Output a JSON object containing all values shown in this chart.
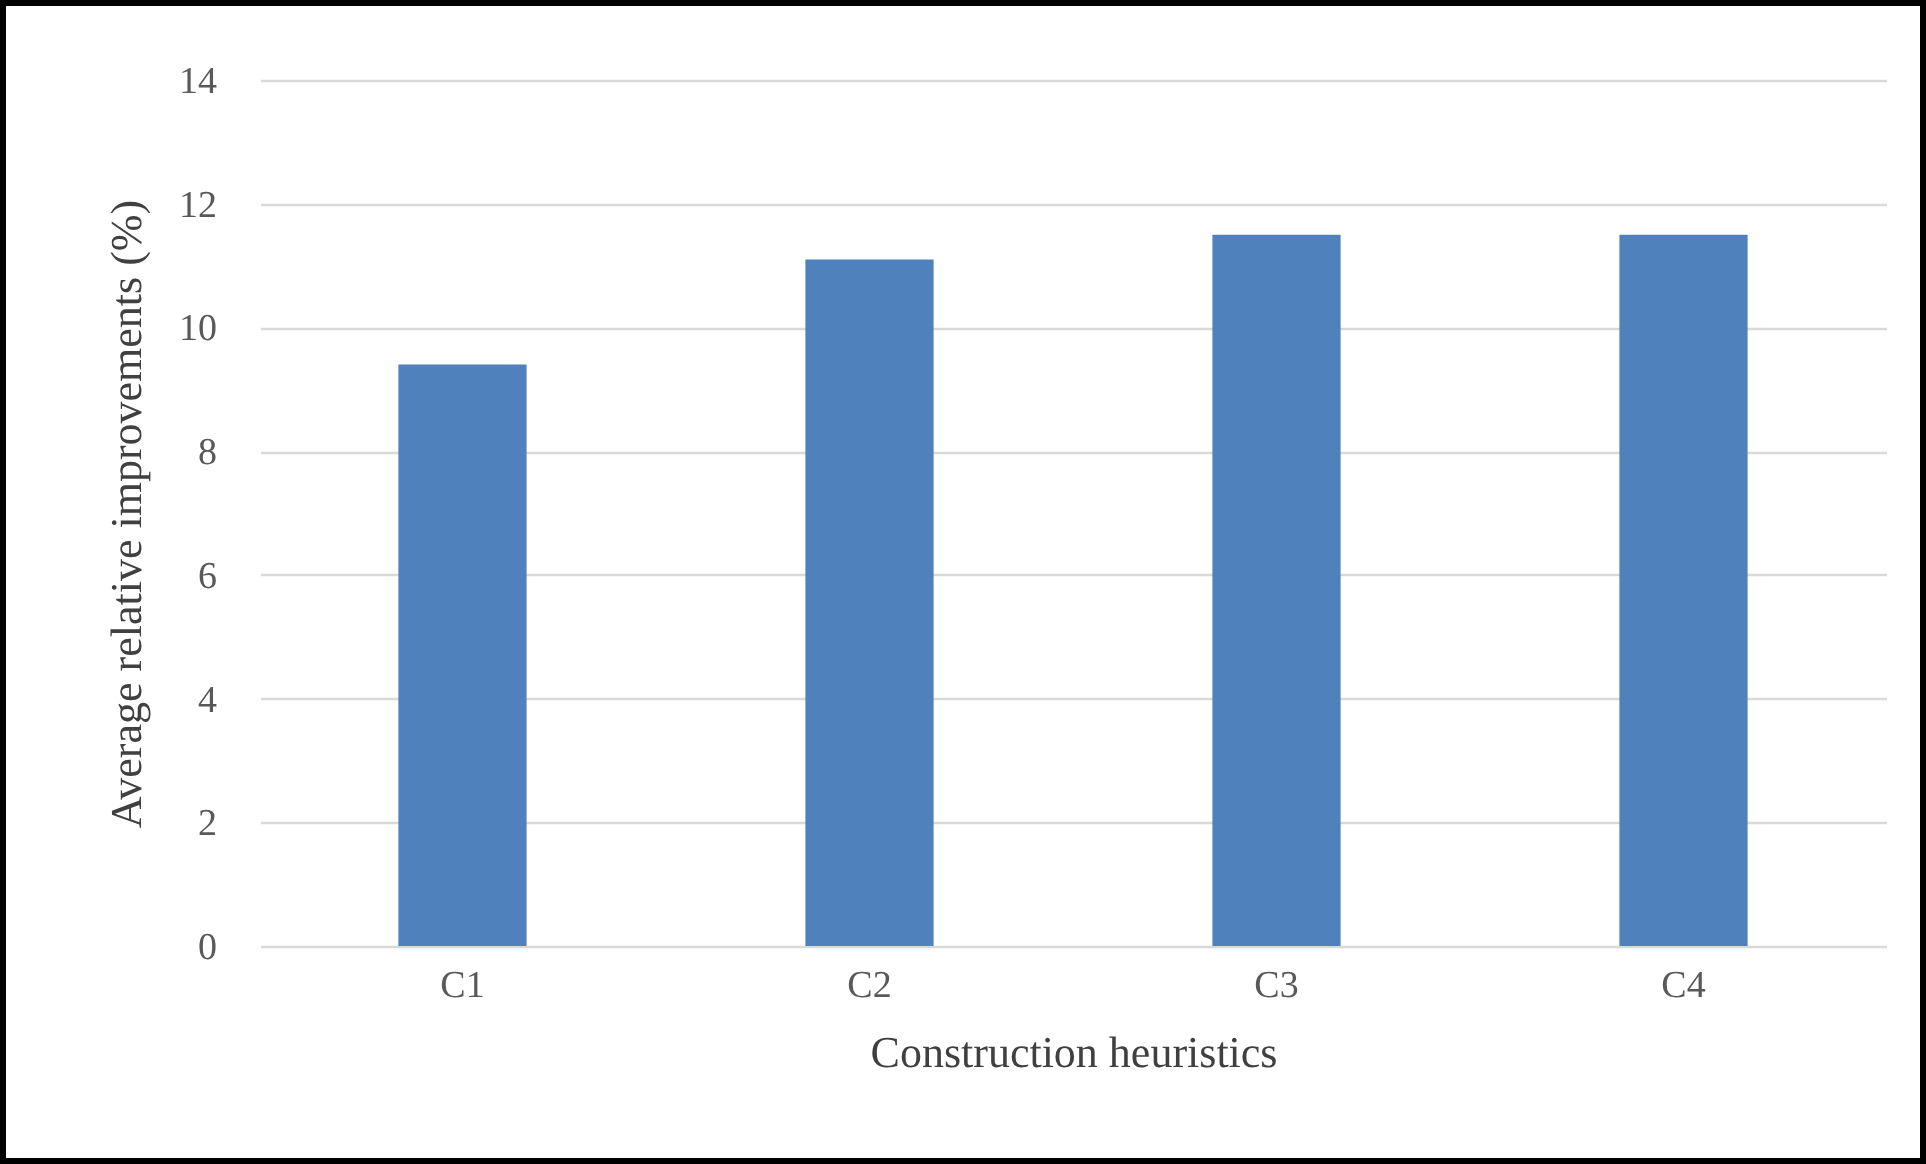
{
  "chart_data": {
    "type": "bar",
    "xlabel": "Construction heuristics",
    "ylabel": "Average relative improvements (%)",
    "categories": [
      "C1",
      "C2",
      "C3",
      "C4"
    ],
    "values": [
      9.4,
      11.1,
      11.5,
      11.5
    ],
    "color": "#4f81bd",
    "ylim": [
      0,
      14
    ],
    "yticks": [
      0,
      2,
      4,
      6,
      8,
      10,
      12,
      14
    ],
    "grid": "y"
  }
}
